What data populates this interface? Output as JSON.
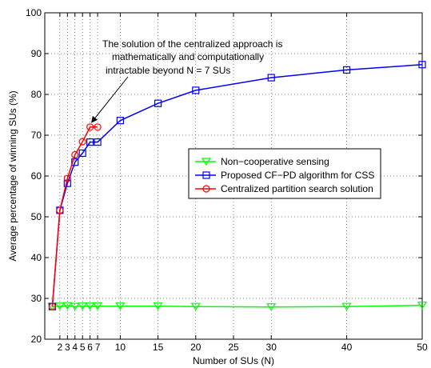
{
  "chart_data": {
    "type": "line",
    "xlabel": "Number of SUs (N)",
    "ylabel": "Average percentage of winning SUs (%)",
    "xlim": [
      0,
      50
    ],
    "ylim": [
      20,
      100
    ],
    "xticks": [
      2,
      3,
      4,
      5,
      6,
      7,
      10,
      15,
      20,
      25,
      30,
      40,
      50
    ],
    "xtick_labels": [
      "2",
      "3",
      "4",
      "5",
      "6",
      "7",
      "10",
      "15",
      "20",
      "25",
      "30",
      "40",
      "50"
    ],
    "yticks": [
      20,
      30,
      40,
      50,
      60,
      70,
      80,
      90,
      100
    ],
    "ytick_labels": [
      "20",
      "30",
      "40",
      "50",
      "60",
      "70",
      "80",
      "90",
      "100"
    ],
    "grid": true,
    "legend_position": "center-right",
    "series": [
      {
        "name": "Non−cooperative sensing",
        "color": "#00ff00",
        "marker": "triangle-down",
        "x": [
          1,
          2,
          3,
          4,
          5,
          6,
          7,
          10,
          15,
          20,
          30,
          40,
          50
        ],
        "y": [
          28,
          28.1,
          28.2,
          28.0,
          28.1,
          28.1,
          28.1,
          28.1,
          28.1,
          28.0,
          27.9,
          28.0,
          28.3
        ]
      },
      {
        "name": "Proposed CF−PD algorithm for CSS",
        "color": "#0000ff",
        "marker": "square",
        "x": [
          1,
          2,
          3,
          4,
          5,
          6,
          7,
          10,
          15,
          20,
          30,
          40,
          50
        ],
        "y": [
          28,
          51.6,
          58.2,
          63.4,
          65.6,
          68.3,
          68.3,
          73.6,
          77.8,
          81.0,
          84.1,
          86.0,
          87.3
        ]
      },
      {
        "name": "Centralized partition search solution",
        "color": "#ff0000",
        "marker": "circle",
        "x": [
          1,
          2,
          3,
          4,
          5,
          6,
          7
        ],
        "y": [
          28,
          51.6,
          59.4,
          65.2,
          68.4,
          72.0,
          72.0
        ]
      }
    ],
    "annotation": {
      "lines": [
        "The solution of the centralized approach is",
        "mathematically and computationally",
        "intractable beyond N = 7 SUs"
      ],
      "arrow_to": {
        "x": 6,
        "y": 72
      }
    }
  }
}
